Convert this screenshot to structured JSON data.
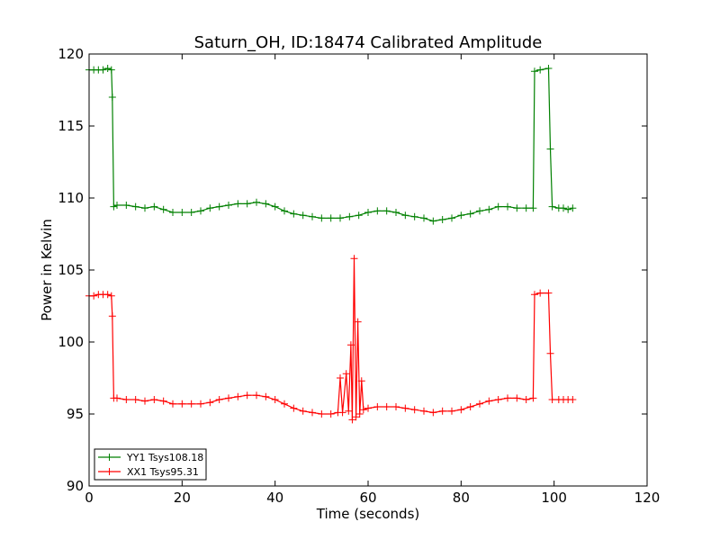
{
  "chart_data": {
    "type": "line",
    "title": "Saturn_OH, ID:18474 Calibrated Amplitude",
    "xlabel": "Time (seconds)",
    "ylabel": "Power in Kelvin",
    "xlim": [
      0,
      120
    ],
    "ylim": [
      90,
      120
    ],
    "xticks": [
      0,
      20,
      40,
      60,
      80,
      100,
      120
    ],
    "yticks": [
      90,
      95,
      100,
      105,
      110,
      115,
      120
    ],
    "grid": false,
    "legend_position": "lower-left",
    "marker": "+",
    "series": [
      {
        "name": "YY1 Tsys108.18",
        "color": "#008000",
        "points": [
          [
            0,
            118.9
          ],
          [
            1,
            118.9
          ],
          [
            2,
            118.9
          ],
          [
            3,
            118.9
          ],
          [
            4,
            119.0
          ],
          [
            4.8,
            118.9
          ],
          [
            5.0,
            117.0
          ],
          [
            5.3,
            109.4
          ],
          [
            6,
            109.5
          ],
          [
            8,
            109.5
          ],
          [
            10,
            109.4
          ],
          [
            12,
            109.3
          ],
          [
            14,
            109.4
          ],
          [
            16,
            109.2
          ],
          [
            18,
            109.0
          ],
          [
            20,
            109.0
          ],
          [
            22,
            109.0
          ],
          [
            24,
            109.1
          ],
          [
            26,
            109.3
          ],
          [
            28,
            109.4
          ],
          [
            30,
            109.5
          ],
          [
            32,
            109.6
          ],
          [
            34,
            109.6
          ],
          [
            36,
            109.7
          ],
          [
            38,
            109.6
          ],
          [
            40,
            109.4
          ],
          [
            42,
            109.1
          ],
          [
            44,
            108.9
          ],
          [
            46,
            108.8
          ],
          [
            48,
            108.7
          ],
          [
            50,
            108.6
          ],
          [
            52,
            108.6
          ],
          [
            54,
            108.6
          ],
          [
            56,
            108.7
          ],
          [
            58,
            108.8
          ],
          [
            60,
            109.0
          ],
          [
            62,
            109.1
          ],
          [
            64,
            109.1
          ],
          [
            66,
            109.0
          ],
          [
            68,
            108.8
          ],
          [
            70,
            108.7
          ],
          [
            72,
            108.6
          ],
          [
            74,
            108.4
          ],
          [
            76,
            108.5
          ],
          [
            78,
            108.6
          ],
          [
            80,
            108.8
          ],
          [
            82,
            108.9
          ],
          [
            84,
            109.1
          ],
          [
            86,
            109.2
          ],
          [
            88,
            109.4
          ],
          [
            90,
            109.4
          ],
          [
            92,
            109.3
          ],
          [
            94,
            109.3
          ],
          [
            95.5,
            109.3
          ],
          [
            95.8,
            118.8
          ],
          [
            97,
            118.9
          ],
          [
            98.8,
            119.0
          ],
          [
            99.2,
            113.4
          ],
          [
            99.6,
            109.4
          ],
          [
            101,
            109.3
          ],
          [
            102,
            109.3
          ],
          [
            103,
            109.2
          ],
          [
            104,
            109.3
          ]
        ]
      },
      {
        "name": "XX1 Tsys95.31",
        "color": "#ff0000",
        "points": [
          [
            0,
            103.2
          ],
          [
            1,
            103.2
          ],
          [
            2,
            103.3
          ],
          [
            3,
            103.3
          ],
          [
            4,
            103.3
          ],
          [
            4.8,
            103.2
          ],
          [
            5.0,
            101.8
          ],
          [
            5.3,
            96.1
          ],
          [
            6,
            96.1
          ],
          [
            8,
            96.0
          ],
          [
            10,
            96.0
          ],
          [
            12,
            95.9
          ],
          [
            14,
            96.0
          ],
          [
            16,
            95.9
          ],
          [
            18,
            95.7
          ],
          [
            20,
            95.7
          ],
          [
            22,
            95.7
          ],
          [
            24,
            95.7
          ],
          [
            26,
            95.8
          ],
          [
            28,
            96.0
          ],
          [
            30,
            96.1
          ],
          [
            32,
            96.2
          ],
          [
            34,
            96.3
          ],
          [
            36,
            96.3
          ],
          [
            38,
            96.2
          ],
          [
            40,
            96.0
          ],
          [
            42,
            95.7
          ],
          [
            44,
            95.4
          ],
          [
            46,
            95.2
          ],
          [
            48,
            95.1
          ],
          [
            50,
            95.0
          ],
          [
            52,
            95.0
          ],
          [
            53.5,
            95.1
          ],
          [
            54.0,
            97.5
          ],
          [
            54.5,
            95.1
          ],
          [
            55.3,
            97.8
          ],
          [
            55.8,
            95.2
          ],
          [
            56.3,
            99.8
          ],
          [
            56.6,
            94.6
          ],
          [
            57.0,
            105.8
          ],
          [
            57.4,
            94.8
          ],
          [
            57.8,
            101.4
          ],
          [
            58.2,
            95.0
          ],
          [
            58.6,
            97.3
          ],
          [
            59.0,
            95.3
          ],
          [
            60,
            95.4
          ],
          [
            62,
            95.5
          ],
          [
            64,
            95.5
          ],
          [
            66,
            95.5
          ],
          [
            68,
            95.4
          ],
          [
            70,
            95.3
          ],
          [
            72,
            95.2
          ],
          [
            74,
            95.1
          ],
          [
            76,
            95.2
          ],
          [
            78,
            95.2
          ],
          [
            80,
            95.3
          ],
          [
            82,
            95.5
          ],
          [
            84,
            95.7
          ],
          [
            86,
            95.9
          ],
          [
            88,
            96.0
          ],
          [
            90,
            96.1
          ],
          [
            92,
            96.1
          ],
          [
            94,
            96.0
          ],
          [
            95.5,
            96.1
          ],
          [
            95.8,
            103.3
          ],
          [
            97,
            103.4
          ],
          [
            98.8,
            103.4
          ],
          [
            99.2,
            99.2
          ],
          [
            99.6,
            96.0
          ],
          [
            101,
            96.0
          ],
          [
            102,
            96.0
          ],
          [
            103,
            96.0
          ],
          [
            104,
            96.0
          ]
        ]
      }
    ]
  }
}
